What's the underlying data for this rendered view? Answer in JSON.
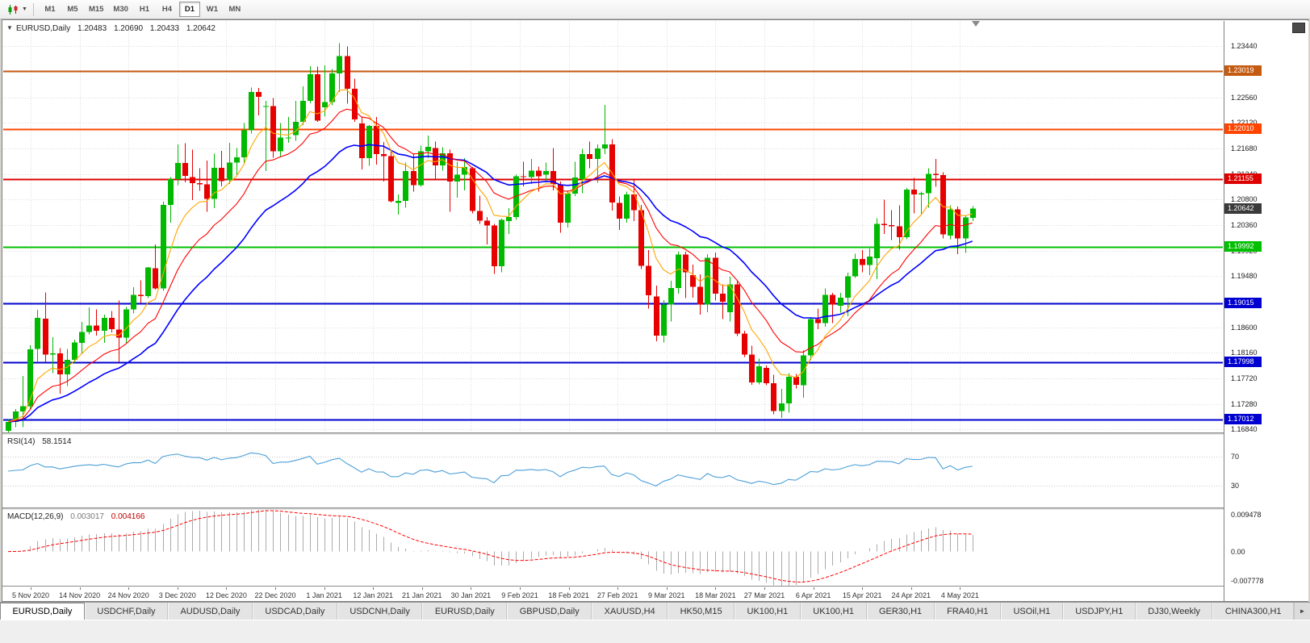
{
  "toolbar": {
    "timeframes": [
      "M1",
      "M5",
      "M15",
      "M30",
      "H1",
      "H4",
      "D1",
      "W1",
      "MN"
    ],
    "active": "D1"
  },
  "icons": {
    "dropdown_caret": "▼",
    "one_click_caret": "▼",
    "tab_scroll_right": "►"
  },
  "chart": {
    "symbol_period": "EURUSD,Daily",
    "type": "candlestick",
    "ohlc": {
      "open": "1.20483",
      "high": "1.20690",
      "low": "1.20433",
      "close": "1.20642"
    },
    "price_ticks": [
      "1.23440",
      "1.23000",
      "1.22560",
      "1.22120",
      "1.21680",
      "1.21240",
      "1.20800",
      "1.20360",
      "1.19920",
      "1.19480",
      "1.19040",
      "1.18600",
      "1.18160",
      "1.17720",
      "1.17280",
      "1.16840"
    ],
    "scale": {
      "top": 1.23875,
      "bottom": 1.1679
    },
    "levels": [
      {
        "value": "1.23019",
        "color": "#C55A11"
      },
      {
        "value": "1.22010",
        "color": "#FF4500"
      },
      {
        "value": "1.21155",
        "color": "#DD0000"
      },
      {
        "value": "1.19992",
        "color": "#00C000"
      },
      {
        "value": "1.19015",
        "color": "#0000D0"
      },
      {
        "value": "1.17998",
        "color": "#0000D0"
      },
      {
        "value": "1.17012",
        "color": "#0000D0"
      }
    ],
    "current_price_tag": {
      "value": "1.20642",
      "bg": "#3A3A3A"
    },
    "dates": [
      "5 Nov 2020",
      "14 Nov 2020",
      "24 Nov 2020",
      "3 Dec 2020",
      "12 Dec 2020",
      "22 Dec 2020",
      "1 Jan 2021",
      "12 Jan 2021",
      "21 Jan 2021",
      "30 Jan 2021",
      "9 Feb 2021",
      "18 Feb 2021",
      "27 Feb 2021",
      "9 Mar 2021",
      "18 Mar 2021",
      "27 Mar 2021",
      "6 Apr 2021",
      "15 Apr 2021",
      "24 Apr 2021",
      "4 May 2021"
    ],
    "colors": {
      "up": "#00B900",
      "down": "#E60000",
      "grid": "#DBDBDB",
      "macd_hist": "#ABABAB",
      "macd_signal": "#FF0000"
    },
    "ma_lines": [
      {
        "period": 26,
        "color": "#0000FF",
        "width": 1.6
      },
      {
        "period": 14,
        "color": "#FF0000",
        "width": 1.1
      },
      {
        "period": 7,
        "color": "#FFA500",
        "width": 1.1
      }
    ],
    "candles": [
      [
        1.1682,
        1.1701,
        1.1679,
        1.1697
      ],
      [
        1.1697,
        1.1719,
        1.1688,
        1.1715
      ],
      [
        1.1715,
        1.1776,
        1.1688,
        1.1724
      ],
      [
        1.1724,
        1.1829,
        1.1718,
        1.1822
      ],
      [
        1.1823,
        1.189,
        1.18,
        1.1876
      ],
      [
        1.1875,
        1.192,
        1.18,
        1.1813
      ],
      [
        1.1813,
        1.1843,
        1.1781,
        1.1815
      ],
      [
        1.1815,
        1.1824,
        1.1746,
        1.1779
      ],
      [
        1.1779,
        1.1823,
        1.1759,
        1.1804
      ],
      [
        1.1804,
        1.1839,
        1.1799,
        1.1834
      ],
      [
        1.1833,
        1.1869,
        1.1815,
        1.1852
      ],
      [
        1.1852,
        1.1894,
        1.1848,
        1.1863
      ],
      [
        1.1863,
        1.1891,
        1.1846,
        1.1854
      ],
      [
        1.1854,
        1.1882,
        1.1833,
        1.1876
      ],
      [
        1.1876,
        1.1888,
        1.1851,
        1.1857
      ],
      [
        1.1856,
        1.1906,
        1.18,
        1.1842
      ],
      [
        1.1842,
        1.1895,
        1.1833,
        1.1891
      ],
      [
        1.1891,
        1.1929,
        1.1884,
        1.1916
      ],
      [
        1.1916,
        1.1941,
        1.1902,
        1.1914
      ],
      [
        1.1914,
        1.1964,
        1.191,
        1.1963
      ],
      [
        1.1962,
        1.2003,
        1.1925,
        1.1927
      ],
      [
        1.1927,
        1.2076,
        1.1923,
        1.2071
      ],
      [
        1.2071,
        1.2119,
        1.204,
        1.2115
      ],
      [
        1.2115,
        1.2175,
        1.2105,
        1.2143
      ],
      [
        1.2143,
        1.2177,
        1.211,
        1.2121
      ],
      [
        1.2119,
        1.2166,
        1.2079,
        1.2108
      ],
      [
        1.2108,
        1.2134,
        1.2095,
        1.2106
      ],
      [
        1.2106,
        1.2147,
        1.2059,
        1.2081
      ],
      [
        1.2081,
        1.2159,
        1.2065,
        1.2135
      ],
      [
        1.2135,
        1.2164,
        1.2103,
        1.2112
      ],
      [
        1.2113,
        1.2178,
        1.2107,
        1.2144
      ],
      [
        1.2144,
        1.2169,
        1.2123,
        1.2153
      ],
      [
        1.2153,
        1.2212,
        1.2143,
        1.2199
      ],
      [
        1.2199,
        1.2273,
        1.2194,
        1.2265
      ],
      [
        1.2265,
        1.2272,
        1.2225,
        1.2257
      ],
      [
        1.224,
        1.225,
        1.2129,
        1.2241
      ],
      [
        1.2241,
        1.2255,
        1.2152,
        1.2163
      ],
      [
        1.2163,
        1.2212,
        1.2154,
        1.2187
      ],
      [
        1.2187,
        1.2222,
        1.2178,
        1.2187
      ],
      [
        1.2191,
        1.225,
        1.2181,
        1.2214
      ],
      [
        1.2214,
        1.2275,
        1.2208,
        1.225
      ],
      [
        1.225,
        1.231,
        1.2246,
        1.2296
      ],
      [
        1.2296,
        1.2309,
        1.2214,
        1.2216
      ],
      [
        1.2239,
        1.2311,
        1.2223,
        1.2248
      ],
      [
        1.2248,
        1.2305,
        1.2242,
        1.2297
      ],
      [
        1.2297,
        1.2349,
        1.2265,
        1.2327
      ],
      [
        1.2327,
        1.2344,
        1.2245,
        1.2271
      ],
      [
        1.2271,
        1.2288,
        1.2214,
        1.2218
      ],
      [
        1.2211,
        1.2223,
        1.2132,
        1.2151
      ],
      [
        1.2151,
        1.2208,
        1.2138,
        1.2207
      ],
      [
        1.2207,
        1.2222,
        1.214,
        1.2158
      ],
      [
        1.2158,
        1.2179,
        1.2111,
        1.2155
      ],
      [
        1.2155,
        1.2163,
        1.2075,
        1.2077
      ],
      [
        1.2074,
        1.2089,
        1.2054,
        1.2078
      ],
      [
        1.2078,
        1.2144,
        1.2066,
        1.2129
      ],
      [
        1.2129,
        1.2158,
        1.2094,
        1.2105
      ],
      [
        1.2105,
        1.2173,
        1.2102,
        1.2163
      ],
      [
        1.2163,
        1.219,
        1.2151,
        1.2171
      ],
      [
        1.2169,
        1.218,
        1.2116,
        1.2139
      ],
      [
        1.2139,
        1.217,
        1.213,
        1.216
      ],
      [
        1.216,
        1.2166,
        1.2059,
        1.2111
      ],
      [
        1.2111,
        1.2145,
        1.2083,
        1.2123
      ],
      [
        1.2123,
        1.2151,
        1.2096,
        1.2136
      ],
      [
        1.2134,
        1.2136,
        1.2056,
        1.206
      ],
      [
        1.206,
        1.2087,
        1.2038,
        1.2044
      ],
      [
        1.2044,
        1.205,
        1.2003,
        1.2035
      ],
      [
        1.2035,
        1.2038,
        1.1952,
        1.1965
      ],
      [
        1.1965,
        1.2047,
        1.1955,
        1.2045
      ],
      [
        1.2043,
        1.2065,
        1.2021,
        1.205
      ],
      [
        1.205,
        1.2123,
        1.2045,
        1.212
      ],
      [
        1.212,
        1.2145,
        1.2103,
        1.2119
      ],
      [
        1.2119,
        1.215,
        1.2107,
        1.213
      ],
      [
        1.213,
        1.2137,
        1.2094,
        1.212
      ],
      [
        1.2123,
        1.2144,
        1.211,
        1.2129
      ],
      [
        1.2129,
        1.2169,
        1.2096,
        1.2106
      ],
      [
        1.2106,
        1.2111,
        1.2023,
        1.204
      ],
      [
        1.204,
        1.2096,
        1.2032,
        1.209
      ],
      [
        1.209,
        1.2145,
        1.2086,
        1.2118
      ],
      [
        1.2115,
        1.2167,
        1.2091,
        1.2158
      ],
      [
        1.2158,
        1.218,
        1.2134,
        1.215
      ],
      [
        1.215,
        1.2175,
        1.2109,
        1.2168
      ],
      [
        1.2168,
        1.2243,
        1.2158,
        1.2175
      ],
      [
        1.2175,
        1.2184,
        1.2061,
        1.2075
      ],
      [
        1.2074,
        1.2085,
        1.2028,
        1.2047
      ],
      [
        1.2047,
        1.2094,
        1.204,
        1.2089
      ],
      [
        1.2089,
        1.2113,
        1.2043,
        1.2062
      ],
      [
        1.2062,
        1.2071,
        1.196,
        1.1966
      ],
      [
        1.1966,
        1.1993,
        1.1892,
        1.1915
      ],
      [
        1.1913,
        1.1932,
        1.1836,
        1.1846
      ],
      [
        1.1846,
        1.1907,
        1.1834,
        1.1899
      ],
      [
        1.1899,
        1.194,
        1.187,
        1.1928
      ],
      [
        1.1928,
        1.199,
        1.1918,
        1.1985
      ],
      [
        1.1985,
        1.199,
        1.191,
        1.1955
      ],
      [
        1.195,
        1.1968,
        1.1911,
        1.193
      ],
      [
        1.193,
        1.1951,
        1.1882,
        1.1899
      ],
      [
        1.1899,
        1.1986,
        1.1886,
        1.198
      ],
      [
        1.198,
        1.1989,
        1.1906,
        1.1918
      ],
      [
        1.1918,
        1.1934,
        1.1874,
        1.1904
      ],
      [
        1.1886,
        1.1947,
        1.187,
        1.1934
      ],
      [
        1.1934,
        1.194,
        1.1845,
        1.1849
      ],
      [
        1.1849,
        1.1854,
        1.1809,
        1.1813
      ],
      [
        1.1813,
        1.1828,
        1.1761,
        1.1765
      ],
      [
        1.1765,
        1.1806,
        1.1762,
        1.1793
      ],
      [
        1.179,
        1.1794,
        1.176,
        1.1764
      ],
      [
        1.1764,
        1.1778,
        1.171,
        1.1716
      ],
      [
        1.1716,
        1.1754,
        1.1704,
        1.1729
      ],
      [
        1.1729,
        1.1781,
        1.1713,
        1.1775
      ],
      [
        1.1775,
        1.178,
        1.1755,
        1.1761
      ],
      [
        1.176,
        1.1821,
        1.1739,
        1.1812
      ],
      [
        1.1812,
        1.1878,
        1.1803,
        1.1874
      ],
      [
        1.1874,
        1.1892,
        1.1857,
        1.1867
      ],
      [
        1.1867,
        1.1927,
        1.1861,
        1.1916
      ],
      [
        1.1916,
        1.1919,
        1.1867,
        1.1899
      ],
      [
        1.1897,
        1.1919,
        1.1885,
        1.1911
      ],
      [
        1.1911,
        1.1954,
        1.1879,
        1.1948
      ],
      [
        1.1948,
        1.1987,
        1.1945,
        1.1978
      ],
      [
        1.1978,
        1.1993,
        1.1955,
        1.1967
      ],
      [
        1.1967,
        1.1996,
        1.195,
        1.1982
      ],
      [
        1.1979,
        1.2048,
        1.1943,
        1.2038
      ],
      [
        1.2038,
        1.208,
        1.2021,
        1.2036
      ],
      [
        1.2036,
        1.2062,
        1.201,
        1.2034
      ],
      [
        1.2034,
        1.207,
        1.1994,
        1.2015
      ],
      [
        1.2015,
        1.21,
        1.2012,
        1.2097
      ],
      [
        1.2097,
        1.2117,
        1.2056,
        1.2089
      ],
      [
        1.2089,
        1.2094,
        1.2055,
        1.2091
      ],
      [
        1.2091,
        1.2134,
        1.2066,
        1.2124
      ],
      [
        1.2124,
        1.215,
        1.2102,
        1.2122
      ],
      [
        1.2122,
        1.2127,
        1.2013,
        1.202
      ],
      [
        1.2018,
        1.207,
        1.2012,
        1.2063
      ],
      [
        1.2063,
        1.2068,
        1.1986,
        1.2013
      ],
      [
        1.2013,
        1.2052,
        1.1988,
        1.2049
      ],
      [
        1.20483,
        1.2069,
        1.20433,
        1.20642
      ]
    ]
  },
  "rsi": {
    "name": "RSI(14)",
    "value": "58.1514",
    "period": 14,
    "levels": [
      "70",
      "30"
    ],
    "color": "#4DA0D8"
  },
  "macd": {
    "name": "MACD(12,26,9)",
    "main_value": "0.003017",
    "signal_value": "0.004166",
    "fast": 12,
    "slow": 26,
    "signal": 9,
    "axis_labels": [
      "0.009478",
      "0.00",
      "-0.007778"
    ]
  },
  "tabs": {
    "items": [
      "EURUSD,Daily",
      "USDCHF,Daily",
      "AUDUSD,Daily",
      "USDCAD,Daily",
      "USDCNH,Daily",
      "EURUSD,Daily",
      "GBPUSD,Daily",
      "XAUUSD,H4",
      "HK50,M15",
      "UK100,H1",
      "UK100,H1",
      "GER30,H1",
      "FRA40,H1",
      "USOil,H1",
      "USDJPY,H1",
      "DJ30,Weekly",
      "CHINA300,H1"
    ],
    "active_index": 0
  }
}
